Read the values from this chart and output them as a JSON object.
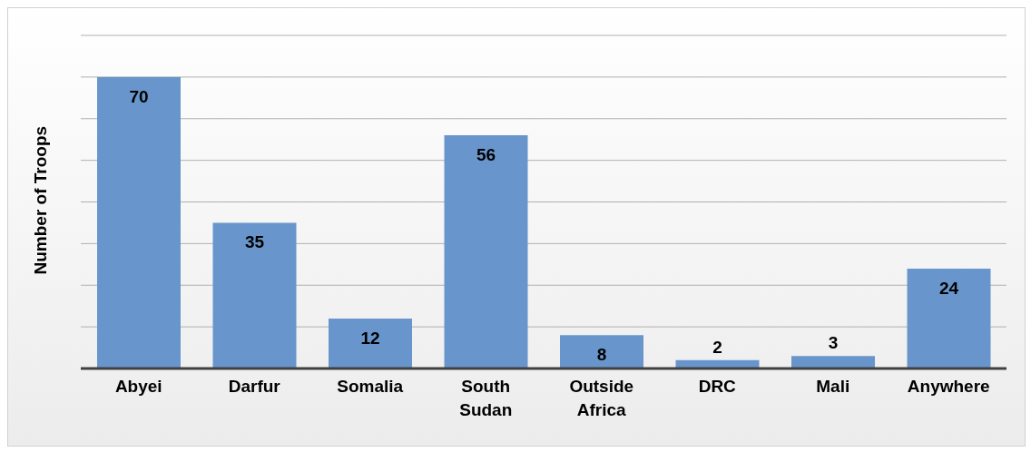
{
  "chart_data": {
    "type": "bar",
    "ylabel": "Number of Troops",
    "categories": [
      "Abyei",
      "Darfur",
      "Somalia",
      "South Sudan",
      "Outside Africa",
      "DRC",
      "Mali",
      "Anywhere"
    ],
    "values": [
      70,
      35,
      12,
      56,
      8,
      2,
      3,
      24
    ],
    "color": "#6896cc",
    "ylim": [
      0,
      80
    ],
    "yticks": [
      {
        "value": 0,
        "label": null
      },
      {
        "value": 10,
        "label": null
      },
      {
        "value": 20,
        "label": null
      },
      {
        "value": 30,
        "label": null
      },
      {
        "value": 40,
        "label": null
      },
      {
        "value": 50,
        "label": null
      },
      {
        "value": 60,
        "label": null
      },
      {
        "value": 70,
        "label": null
      },
      {
        "value": 80,
        "label": null
      }
    ],
    "grid": "y",
    "tick_labels": "x",
    "data_labels": true
  }
}
